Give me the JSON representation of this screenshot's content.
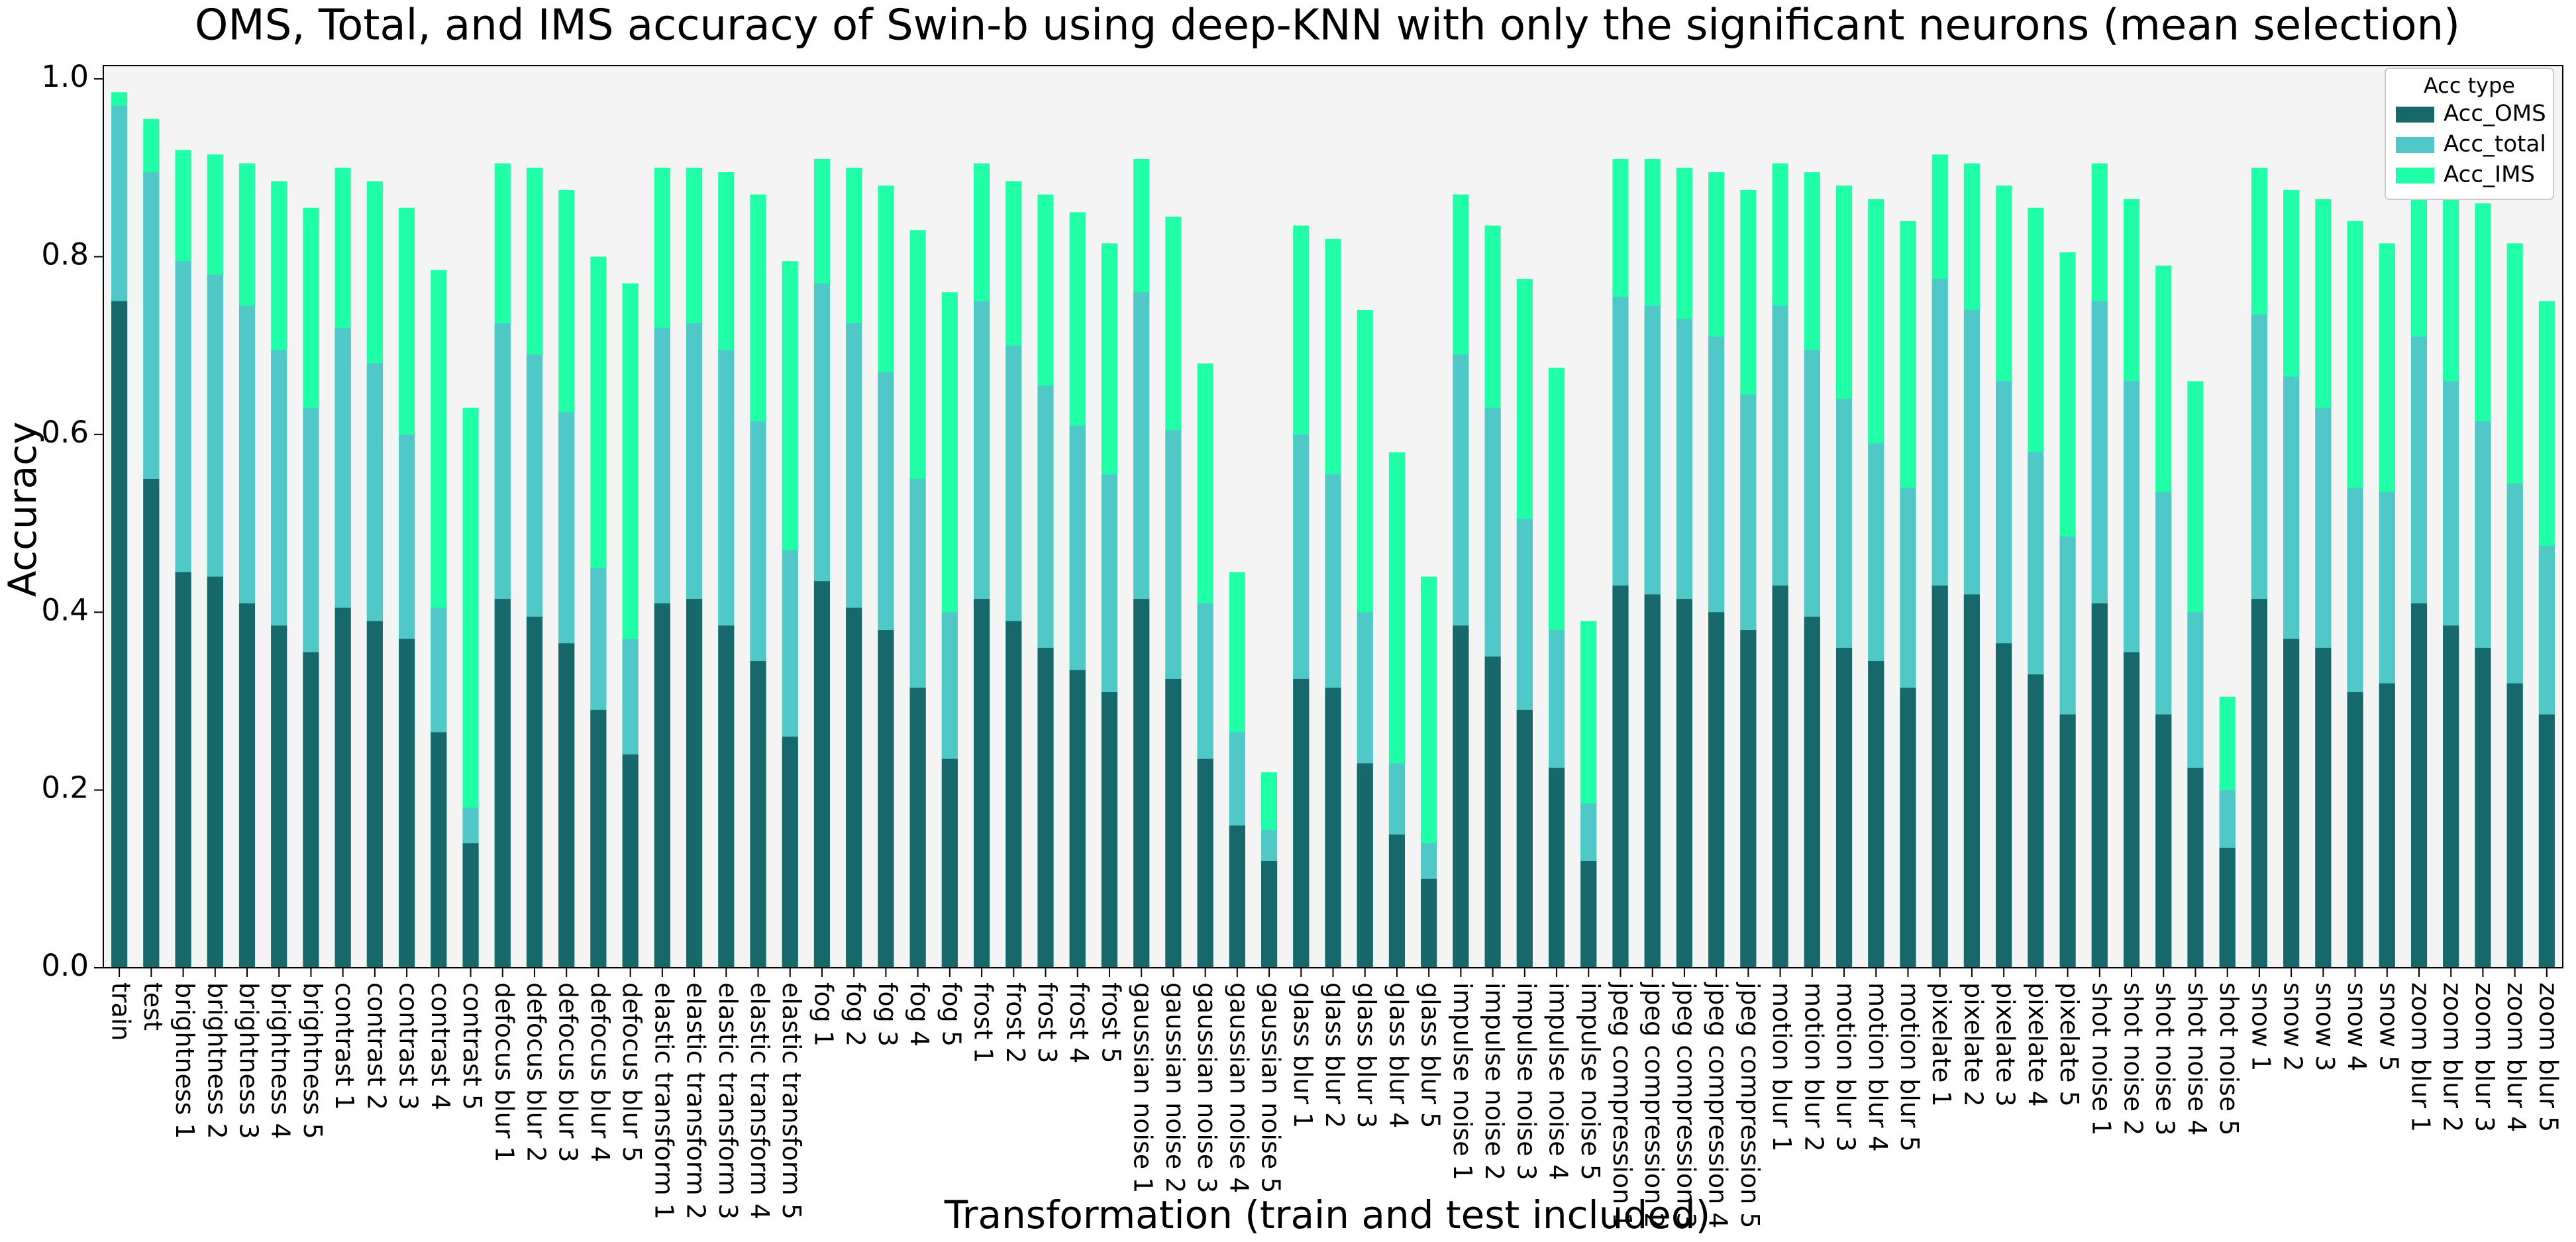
{
  "chart_data": {
    "type": "bar",
    "title": "OMS, Total,  and IMS accuracy of Swin-b using deep-KNN with only the significant neurons (mean selection)",
    "x_label": "Transformation (train and test included)",
    "y_label": "Accuracy",
    "legend_title": "Acc type",
    "legend": "upper right",
    "categories": [
      "train",
      "test",
      "brightness 1",
      "brightness 2",
      "brightness 3",
      "brightness 4",
      "brightness 5",
      "contrast 1",
      "contrast 2",
      "contrast 3",
      "contrast 4",
      "contrast 5",
      "defocus blur 1",
      "defocus blur 2",
      "defocus blur 3",
      "defocus blur 4",
      "defocus blur 5",
      "elastic transform 1",
      "elastic transform 2",
      "elastic transform 3",
      "elastic transform 4",
      "elastic transform 5",
      "fog 1",
      "fog 2",
      "fog 3",
      "fog 4",
      "fog 5",
      "frost 1",
      "frost 2",
      "frost 3",
      "frost 4",
      "frost 5",
      "gaussian noise 1",
      "gaussian noise 2",
      "gaussian noise 3",
      "gaussian noise 4",
      "gaussian noise 5",
      "glass blur 1",
      "glass blur 2",
      "glass blur 3",
      "glass blur 4",
      "glass blur 5",
      "impulse noise 1",
      "impulse noise 2",
      "impulse noise 3",
      "impulse noise 4",
      "impulse noise 5",
      "jpeg compression 1",
      "jpeg compression 2",
      "jpeg compression 3",
      "jpeg compression 4",
      "jpeg compression 5",
      "motion blur 1",
      "motion blur 2",
      "motion blur 3",
      "motion blur 4",
      "motion blur 5",
      "pixelate 1",
      "pixelate 2",
      "pixelate 3",
      "pixelate 4",
      "pixelate 5",
      "shot noise 1",
      "shot noise 2",
      "shot noise 3",
      "shot noise 4",
      "shot noise 5",
      "snow 1",
      "snow 2",
      "snow 3",
      "snow 4",
      "snow 5",
      "zoom blur 1",
      "zoom blur 2",
      "zoom blur 3",
      "zoom blur 4",
      "zoom blur 5"
    ],
    "series": [
      {
        "name": "Acc_OMS",
        "color": "#17686a",
        "values": [
          0.75,
          0.55,
          0.445,
          0.44,
          0.41,
          0.385,
          0.355,
          0.405,
          0.39,
          0.37,
          0.265,
          0.14,
          0.415,
          0.395,
          0.365,
          0.29,
          0.24,
          0.41,
          0.415,
          0.385,
          0.345,
          0.26,
          0.435,
          0.405,
          0.38,
          0.315,
          0.235,
          0.415,
          0.39,
          0.36,
          0.335,
          0.31,
          0.415,
          0.325,
          0.235,
          0.16,
          0.12,
          0.325,
          0.315,
          0.23,
          0.15,
          0.1,
          0.385,
          0.35,
          0.29,
          0.225,
          0.12,
          0.43,
          0.42,
          0.415,
          0.4,
          0.38,
          0.43,
          0.395,
          0.36,
          0.345,
          0.315,
          0.43,
          0.42,
          0.365,
          0.33,
          0.285,
          0.41,
          0.355,
          0.285,
          0.225,
          0.135,
          0.415,
          0.37,
          0.36,
          0.31,
          0.32,
          0.41,
          0.385,
          0.36,
          0.32,
          0.285
        ]
      },
      {
        "name": "Acc_total",
        "color": "#50c8c8",
        "values": [
          0.97,
          0.895,
          0.795,
          0.78,
          0.745,
          0.695,
          0.63,
          0.72,
          0.68,
          0.6,
          0.405,
          0.18,
          0.725,
          0.69,
          0.625,
          0.45,
          0.37,
          0.72,
          0.725,
          0.695,
          0.615,
          0.47,
          0.77,
          0.725,
          0.67,
          0.55,
          0.4,
          0.75,
          0.7,
          0.655,
          0.61,
          0.555,
          0.76,
          0.605,
          0.41,
          0.265,
          0.155,
          0.6,
          0.555,
          0.4,
          0.23,
          0.14,
          0.69,
          0.63,
          0.505,
          0.38,
          0.185,
          0.755,
          0.745,
          0.73,
          0.71,
          0.645,
          0.745,
          0.695,
          0.64,
          0.59,
          0.54,
          0.775,
          0.74,
          0.66,
          0.58,
          0.485,
          0.75,
          0.66,
          0.535,
          0.4,
          0.2,
          0.735,
          0.665,
          0.63,
          0.54,
          0.535,
          0.71,
          0.66,
          0.615,
          0.545,
          0.475
        ]
      },
      {
        "name": "Acc_IMS",
        "color": "#20ffa8",
        "values": [
          0.985,
          0.955,
          0.92,
          0.915,
          0.905,
          0.885,
          0.855,
          0.9,
          0.885,
          0.855,
          0.785,
          0.63,
          0.905,
          0.9,
          0.875,
          0.8,
          0.77,
          0.9,
          0.9,
          0.895,
          0.87,
          0.795,
          0.91,
          0.9,
          0.88,
          0.83,
          0.76,
          0.905,
          0.885,
          0.87,
          0.85,
          0.815,
          0.91,
          0.845,
          0.68,
          0.445,
          0.22,
          0.835,
          0.82,
          0.74,
          0.58,
          0.44,
          0.87,
          0.835,
          0.775,
          0.675,
          0.39,
          0.91,
          0.91,
          0.9,
          0.895,
          0.875,
          0.905,
          0.895,
          0.88,
          0.865,
          0.84,
          0.915,
          0.905,
          0.88,
          0.855,
          0.805,
          0.905,
          0.865,
          0.79,
          0.66,
          0.305,
          0.9,
          0.875,
          0.865,
          0.84,
          0.815,
          0.9,
          0.89,
          0.86,
          0.815,
          0.75
        ]
      }
    ],
    "ylim": [
      0,
      1.015
    ],
    "yticks": [
      {
        "value": 0,
        "label": "0.0"
      },
      0.2,
      0.4,
      0.6,
      0.8,
      {
        "value": 1,
        "label": "1.0"
      }
    ]
  }
}
